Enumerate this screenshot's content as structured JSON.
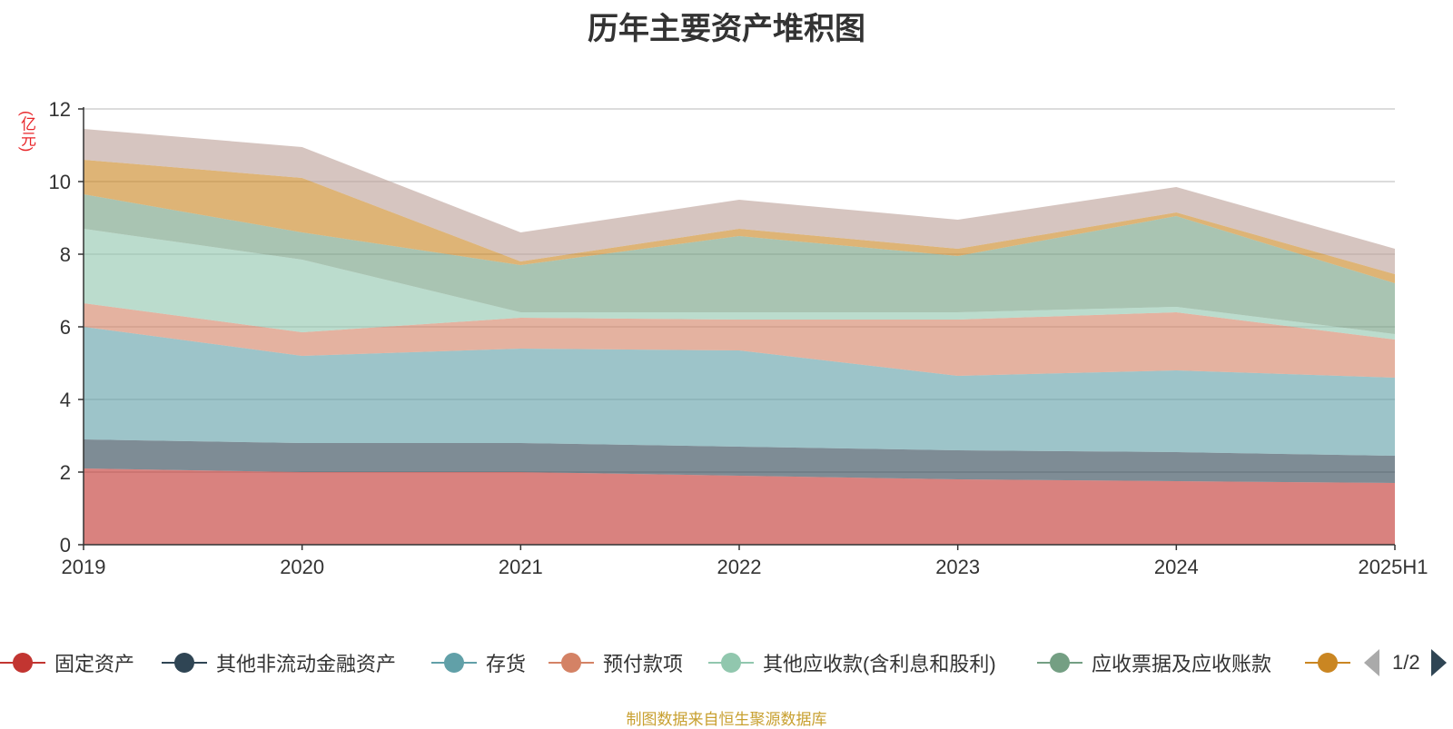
{
  "chart_data": {
    "type": "area",
    "stacked": true,
    "title": "历年主要资产堆积图",
    "unit_label": "(亿元)",
    "categories": [
      "2019",
      "2020",
      "2021",
      "2022",
      "2023",
      "2024",
      "2025H1"
    ],
    "ylim": [
      0,
      12
    ],
    "yticks": [
      0,
      2,
      4,
      6,
      8,
      10,
      12
    ],
    "grid": true,
    "legend_position": "bottom",
    "series": [
      {
        "name": "固定资产",
        "color": "#c23531",
        "values": [
          2.1,
          2.0,
          2.0,
          1.9,
          1.8,
          1.75,
          1.7
        ]
      },
      {
        "name": "其他非流动金融资产",
        "color": "#2f4554",
        "values": [
          0.8,
          0.8,
          0.8,
          0.8,
          0.8,
          0.8,
          0.75
        ]
      },
      {
        "name": "存货",
        "color": "#61a0a8",
        "values": [
          3.1,
          2.4,
          2.6,
          2.65,
          2.05,
          2.25,
          2.15
        ]
      },
      {
        "name": "预付款项",
        "color": "#d48265",
        "values": [
          0.65,
          0.65,
          0.85,
          0.85,
          1.55,
          1.6,
          1.05
        ]
      },
      {
        "name": "其他应收款(含利息和股利)",
        "color": "#91c7ae",
        "values": [
          2.05,
          2.0,
          0.15,
          0.2,
          0.2,
          0.15,
          0.15
        ]
      },
      {
        "name": "应收票据及应收账款",
        "color": "#749f83",
        "values": [
          0.95,
          0.75,
          1.3,
          2.1,
          1.55,
          2.5,
          1.4
        ]
      },
      {
        "name": "",
        "color": "#ca8622",
        "values": [
          0.95,
          1.5,
          0.1,
          0.2,
          0.2,
          0.1,
          0.25
        ]
      },
      {
        "name": "",
        "color": "#bda29a",
        "values": [
          0.85,
          0.85,
          0.8,
          0.8,
          0.8,
          0.7,
          0.7
        ]
      }
    ]
  },
  "legend": {
    "items": [
      {
        "label": "固定资产",
        "color": "#c23531"
      },
      {
        "label": "其他非流动金融资产",
        "color": "#2f4554"
      },
      {
        "label": "存货",
        "color": "#61a0a8"
      },
      {
        "label": "预付款项",
        "color": "#d48265"
      },
      {
        "label": "其他应收款(含利息和股利)",
        "color": "#91c7ae"
      },
      {
        "label": "应收票据及应收账款",
        "color": "#749f83"
      },
      {
        "label": "",
        "color": "#ca8622"
      }
    ],
    "page_indicator": "1/2"
  },
  "source_note": "制图数据来自恒生聚源数据库"
}
